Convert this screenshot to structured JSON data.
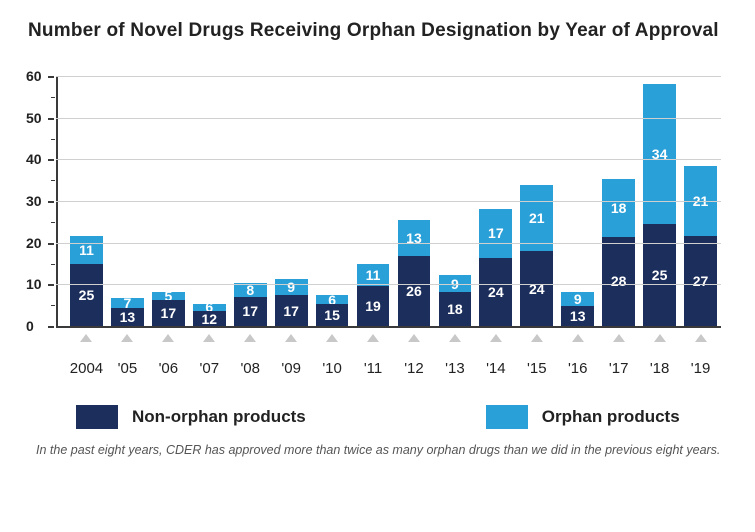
{
  "chart": {
    "type": "stacked-bar",
    "title": "Number of Novel Drugs Receiving Orphan Designation by Year of Approval",
    "background_color": "#ffffff",
    "grid_color": "#d0d0d0",
    "axis_color": "#3a3a3a",
    "ylim": [
      0,
      60
    ],
    "ytick_step": 10,
    "ytick_minor_step": 5,
    "title_fontsize": 19,
    "label_fontsize": 15,
    "value_fontsize": 14,
    "bar_width": 0.8,
    "categories": [
      "2004",
      "'05",
      "'06",
      "'07",
      "'08",
      "'09",
      "'10",
      "'11",
      "'12",
      "'13",
      "'14",
      "'15",
      "'16",
      "'17",
      "'18",
      "'19"
    ],
    "series": [
      {
        "key": "non_orphan",
        "label": "Non-orphan products",
        "color": "#1c2e5b",
        "values": [
          25,
          13,
          17,
          12,
          17,
          17,
          15,
          19,
          26,
          18,
          24,
          24,
          13,
          28,
          25,
          27
        ]
      },
      {
        "key": "orphan",
        "label": "Orphan products",
        "color": "#2aa0d8",
        "values": [
          11,
          7,
          5,
          6,
          8,
          9,
          6,
          11,
          13,
          9,
          17,
          21,
          9,
          18,
          34,
          21
        ]
      }
    ],
    "caption": "In the past eight years, CDER has approved more than twice as many orphan drugs than we did in the previous eight years."
  }
}
